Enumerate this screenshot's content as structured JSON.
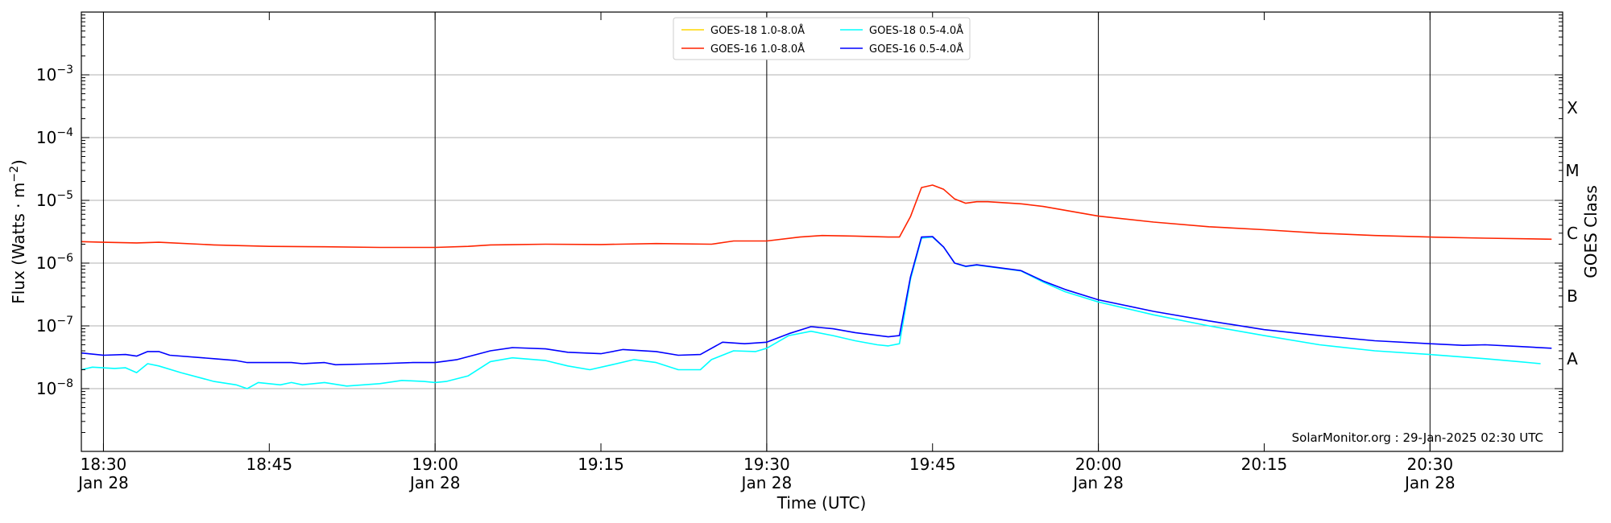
{
  "chart_data": {
    "type": "line",
    "x_unit": "time (UTC)",
    "xlabel": "Time (UTC)",
    "ylabel": "Flux (Watts · m",
    "ylabel_sup": "−2",
    "ylabel_close": ")",
    "yscale": "log",
    "ylim": [
      1e-09,
      0.01
    ],
    "xlim": [
      "18:28",
      "20:42"
    ],
    "y_ticks": [
      {
        "exp": -8,
        "label": "10",
        "sup": "−8"
      },
      {
        "exp": -7,
        "label": "10",
        "sup": "−7"
      },
      {
        "exp": -6,
        "label": "10",
        "sup": "−6"
      },
      {
        "exp": -5,
        "label": "10",
        "sup": "−5"
      },
      {
        "exp": -4,
        "label": "10",
        "sup": "−4"
      },
      {
        "exp": -3,
        "label": "10",
        "sup": "−3"
      }
    ],
    "x_ticks": [
      {
        "t": "18:30",
        "label": "18:30",
        "sub": "Jan 28",
        "vline": true
      },
      {
        "t": "18:45",
        "label": "18:45",
        "sub": "",
        "vline": false
      },
      {
        "t": "19:00",
        "label": "19:00",
        "sub": "Jan 28",
        "vline": true
      },
      {
        "t": "19:15",
        "label": "19:15",
        "sub": "",
        "vline": false
      },
      {
        "t": "19:30",
        "label": "19:30",
        "sub": "Jan 28",
        "vline": true
      },
      {
        "t": "19:45",
        "label": "19:45",
        "sub": "",
        "vline": false
      },
      {
        "t": "20:00",
        "label": "20:00",
        "sub": "Jan 28",
        "vline": true
      },
      {
        "t": "20:15",
        "label": "20:15",
        "sub": "",
        "vline": false
      },
      {
        "t": "20:30",
        "label": "20:30",
        "sub": "Jan 28",
        "vline": true
      }
    ],
    "goes_class_label": "GOES Class",
    "goes_classes": [
      {
        "label": "A",
        "flux": 1e-08
      },
      {
        "label": "B",
        "flux": 1e-07
      },
      {
        "label": "C",
        "flux": 1e-06
      },
      {
        "label": "M",
        "flux": 1e-05
      },
      {
        "label": "X",
        "flux": 0.0001
      }
    ],
    "grid": "horizontal at decades",
    "legend_placement": "top-center",
    "credit": "SolarMonitor.org : 29-Jan-2025 02:30 UTC",
    "series": [
      {
        "name": "GOES-18 1.0-8.0Å",
        "color": "#ffd700",
        "points": []
      },
      {
        "name": "GOES-16 1.0-8.0Å",
        "color": "#ff2400",
        "points": [
          [
            "18:28",
            2.2e-06
          ],
          [
            "18:30",
            2.15e-06
          ],
          [
            "18:33",
            2.1e-06
          ],
          [
            "18:35",
            2.15e-06
          ],
          [
            "18:40",
            1.95e-06
          ],
          [
            "18:45",
            1.85e-06
          ],
          [
            "18:50",
            1.82e-06
          ],
          [
            "18:55",
            1.78e-06
          ],
          [
            "19:00",
            1.78e-06
          ],
          [
            "19:03",
            1.85e-06
          ],
          [
            "19:05",
            1.95e-06
          ],
          [
            "19:10",
            2e-06
          ],
          [
            "19:15",
            1.98e-06
          ],
          [
            "19:20",
            2.05e-06
          ],
          [
            "19:25",
            2e-06
          ],
          [
            "19:27",
            2.25e-06
          ],
          [
            "19:30",
            2.25e-06
          ],
          [
            "19:33",
            2.6e-06
          ],
          [
            "19:35",
            2.75e-06
          ],
          [
            "19:38",
            2.7e-06
          ],
          [
            "19:41",
            2.6e-06
          ],
          [
            "19:42",
            2.6e-06
          ],
          [
            "19:43",
            5.5e-06
          ],
          [
            "19:44",
            1.6e-05
          ],
          [
            "19:45",
            1.75e-05
          ],
          [
            "19:46",
            1.5e-05
          ],
          [
            "19:47",
            1.05e-05
          ],
          [
            "19:48",
            9e-06
          ],
          [
            "19:49",
            9.5e-06
          ],
          [
            "19:50",
            9.5e-06
          ],
          [
            "19:53",
            8.8e-06
          ],
          [
            "19:55",
            8e-06
          ],
          [
            "20:00",
            5.6e-06
          ],
          [
            "20:05",
            4.5e-06
          ],
          [
            "20:10",
            3.8e-06
          ],
          [
            "20:15",
            3.4e-06
          ],
          [
            "20:20",
            3e-06
          ],
          [
            "20:25",
            2.75e-06
          ],
          [
            "20:30",
            2.6e-06
          ],
          [
            "20:35",
            2.5e-06
          ],
          [
            "20:41",
            2.4e-06
          ]
        ]
      },
      {
        "name": "GOES-18 0.5-4.0Å",
        "color": "#00ffff",
        "points": [
          [
            "18:28",
            2e-08
          ],
          [
            "18:29",
            2.2e-08
          ],
          [
            "18:31",
            2.1e-08
          ],
          [
            "18:32",
            2.15e-08
          ],
          [
            "18:33",
            1.8e-08
          ],
          [
            "18:34",
            2.5e-08
          ],
          [
            "18:35",
            2.3e-08
          ],
          [
            "18:37",
            1.8e-08
          ],
          [
            "18:40",
            1.3e-08
          ],
          [
            "18:42",
            1.15e-08
          ],
          [
            "18:43",
            1e-08
          ],
          [
            "18:44",
            1.25e-08
          ],
          [
            "18:46",
            1.15e-08
          ],
          [
            "18:47",
            1.25e-08
          ],
          [
            "18:48",
            1.15e-08
          ],
          [
            "18:50",
            1.25e-08
          ],
          [
            "18:52",
            1.1e-08
          ],
          [
            "18:55",
            1.2e-08
          ],
          [
            "18:57",
            1.35e-08
          ],
          [
            "18:59",
            1.3e-08
          ],
          [
            "19:00",
            1.25e-08
          ],
          [
            "19:01",
            1.3e-08
          ],
          [
            "19:03",
            1.6e-08
          ],
          [
            "19:05",
            2.7e-08
          ],
          [
            "19:07",
            3.1e-08
          ],
          [
            "19:10",
            2.8e-08
          ],
          [
            "19:12",
            2.3e-08
          ],
          [
            "19:14",
            2e-08
          ],
          [
            "19:16",
            2.4e-08
          ],
          [
            "19:18",
            2.9e-08
          ],
          [
            "19:20",
            2.6e-08
          ],
          [
            "19:22",
            2e-08
          ],
          [
            "19:24",
            2e-08
          ],
          [
            "19:25",
            2.9e-08
          ],
          [
            "19:27",
            4e-08
          ],
          [
            "19:29",
            3.9e-08
          ],
          [
            "19:30",
            4.4e-08
          ],
          [
            "19:32",
            7e-08
          ],
          [
            "19:34",
            8.2e-08
          ],
          [
            "19:36",
            7e-08
          ],
          [
            "19:38",
            5.8e-08
          ],
          [
            "19:40",
            5e-08
          ],
          [
            "19:41",
            4.8e-08
          ],
          [
            "19:42",
            5.2e-08
          ],
          [
            "19:43",
            5.5e-07
          ],
          [
            "19:44",
            2.5e-06
          ],
          [
            "19:45",
            2.6e-06
          ],
          [
            "19:46",
            1.8e-06
          ],
          [
            "19:47",
            1e-06
          ],
          [
            "19:48",
            8.8e-07
          ],
          [
            "19:49",
            9.3e-07
          ],
          [
            "19:53",
            7.5e-07
          ],
          [
            "19:55",
            5e-07
          ],
          [
            "19:57",
            3.5e-07
          ],
          [
            "20:00",
            2.4e-07
          ],
          [
            "20:05",
            1.5e-07
          ],
          [
            "20:10",
            1e-07
          ],
          [
            "20:15",
            7e-08
          ],
          [
            "20:20",
            5e-08
          ],
          [
            "20:25",
            4e-08
          ],
          [
            "20:30",
            3.5e-08
          ],
          [
            "20:35",
            3e-08
          ],
          [
            "20:38",
            2.7e-08
          ],
          [
            "20:40",
            2.5e-08
          ]
        ]
      },
      {
        "name": "GOES-16 0.5-4.0Å",
        "color": "#0000ff",
        "points": [
          [
            "18:28",
            3.7e-08
          ],
          [
            "18:30",
            3.4e-08
          ],
          [
            "18:32",
            3.5e-08
          ],
          [
            "18:33",
            3.3e-08
          ],
          [
            "18:34",
            3.9e-08
          ],
          [
            "18:35",
            3.9e-08
          ],
          [
            "18:36",
            3.4e-08
          ],
          [
            "18:40",
            3e-08
          ],
          [
            "18:42",
            2.8e-08
          ],
          [
            "18:43",
            2.6e-08
          ],
          [
            "18:45",
            2.6e-08
          ],
          [
            "18:47",
            2.6e-08
          ],
          [
            "18:48",
            2.5e-08
          ],
          [
            "18:50",
            2.6e-08
          ],
          [
            "18:51",
            2.4e-08
          ],
          [
            "18:55",
            2.5e-08
          ],
          [
            "18:58",
            2.6e-08
          ],
          [
            "19:00",
            2.6e-08
          ],
          [
            "19:02",
            2.9e-08
          ],
          [
            "19:05",
            4e-08
          ],
          [
            "19:07",
            4.5e-08
          ],
          [
            "19:10",
            4.3e-08
          ],
          [
            "19:12",
            3.8e-08
          ],
          [
            "19:15",
            3.6e-08
          ],
          [
            "19:17",
            4.2e-08
          ],
          [
            "19:20",
            3.9e-08
          ],
          [
            "19:22",
            3.4e-08
          ],
          [
            "19:24",
            3.5e-08
          ],
          [
            "19:26",
            5.5e-08
          ],
          [
            "19:28",
            5.2e-08
          ],
          [
            "19:30",
            5.5e-08
          ],
          [
            "19:32",
            7.5e-08
          ],
          [
            "19:34",
            9.7e-08
          ],
          [
            "19:36",
            9e-08
          ],
          [
            "19:38",
            7.8e-08
          ],
          [
            "19:41",
            6.7e-08
          ],
          [
            "19:42",
            7e-08
          ],
          [
            "19:43",
            6e-07
          ],
          [
            "19:44",
            2.6e-06
          ],
          [
            "19:45",
            2.65e-06
          ],
          [
            "19:46",
            1.8e-06
          ],
          [
            "19:47",
            1e-06
          ],
          [
            "19:48",
            8.9e-07
          ],
          [
            "19:49",
            9.4e-07
          ],
          [
            "19:53",
            7.6e-07
          ],
          [
            "19:55",
            5.2e-07
          ],
          [
            "19:57",
            3.8e-07
          ],
          [
            "20:00",
            2.6e-07
          ],
          [
            "20:05",
            1.7e-07
          ],
          [
            "20:10",
            1.2e-07
          ],
          [
            "20:15",
            8.7e-08
          ],
          [
            "20:20",
            7e-08
          ],
          [
            "20:25",
            5.8e-08
          ],
          [
            "20:30",
            5.2e-08
          ],
          [
            "20:33",
            4.9e-08
          ],
          [
            "20:35",
            5e-08
          ],
          [
            "20:38",
            4.7e-08
          ],
          [
            "20:41",
            4.4e-08
          ]
        ]
      }
    ]
  }
}
